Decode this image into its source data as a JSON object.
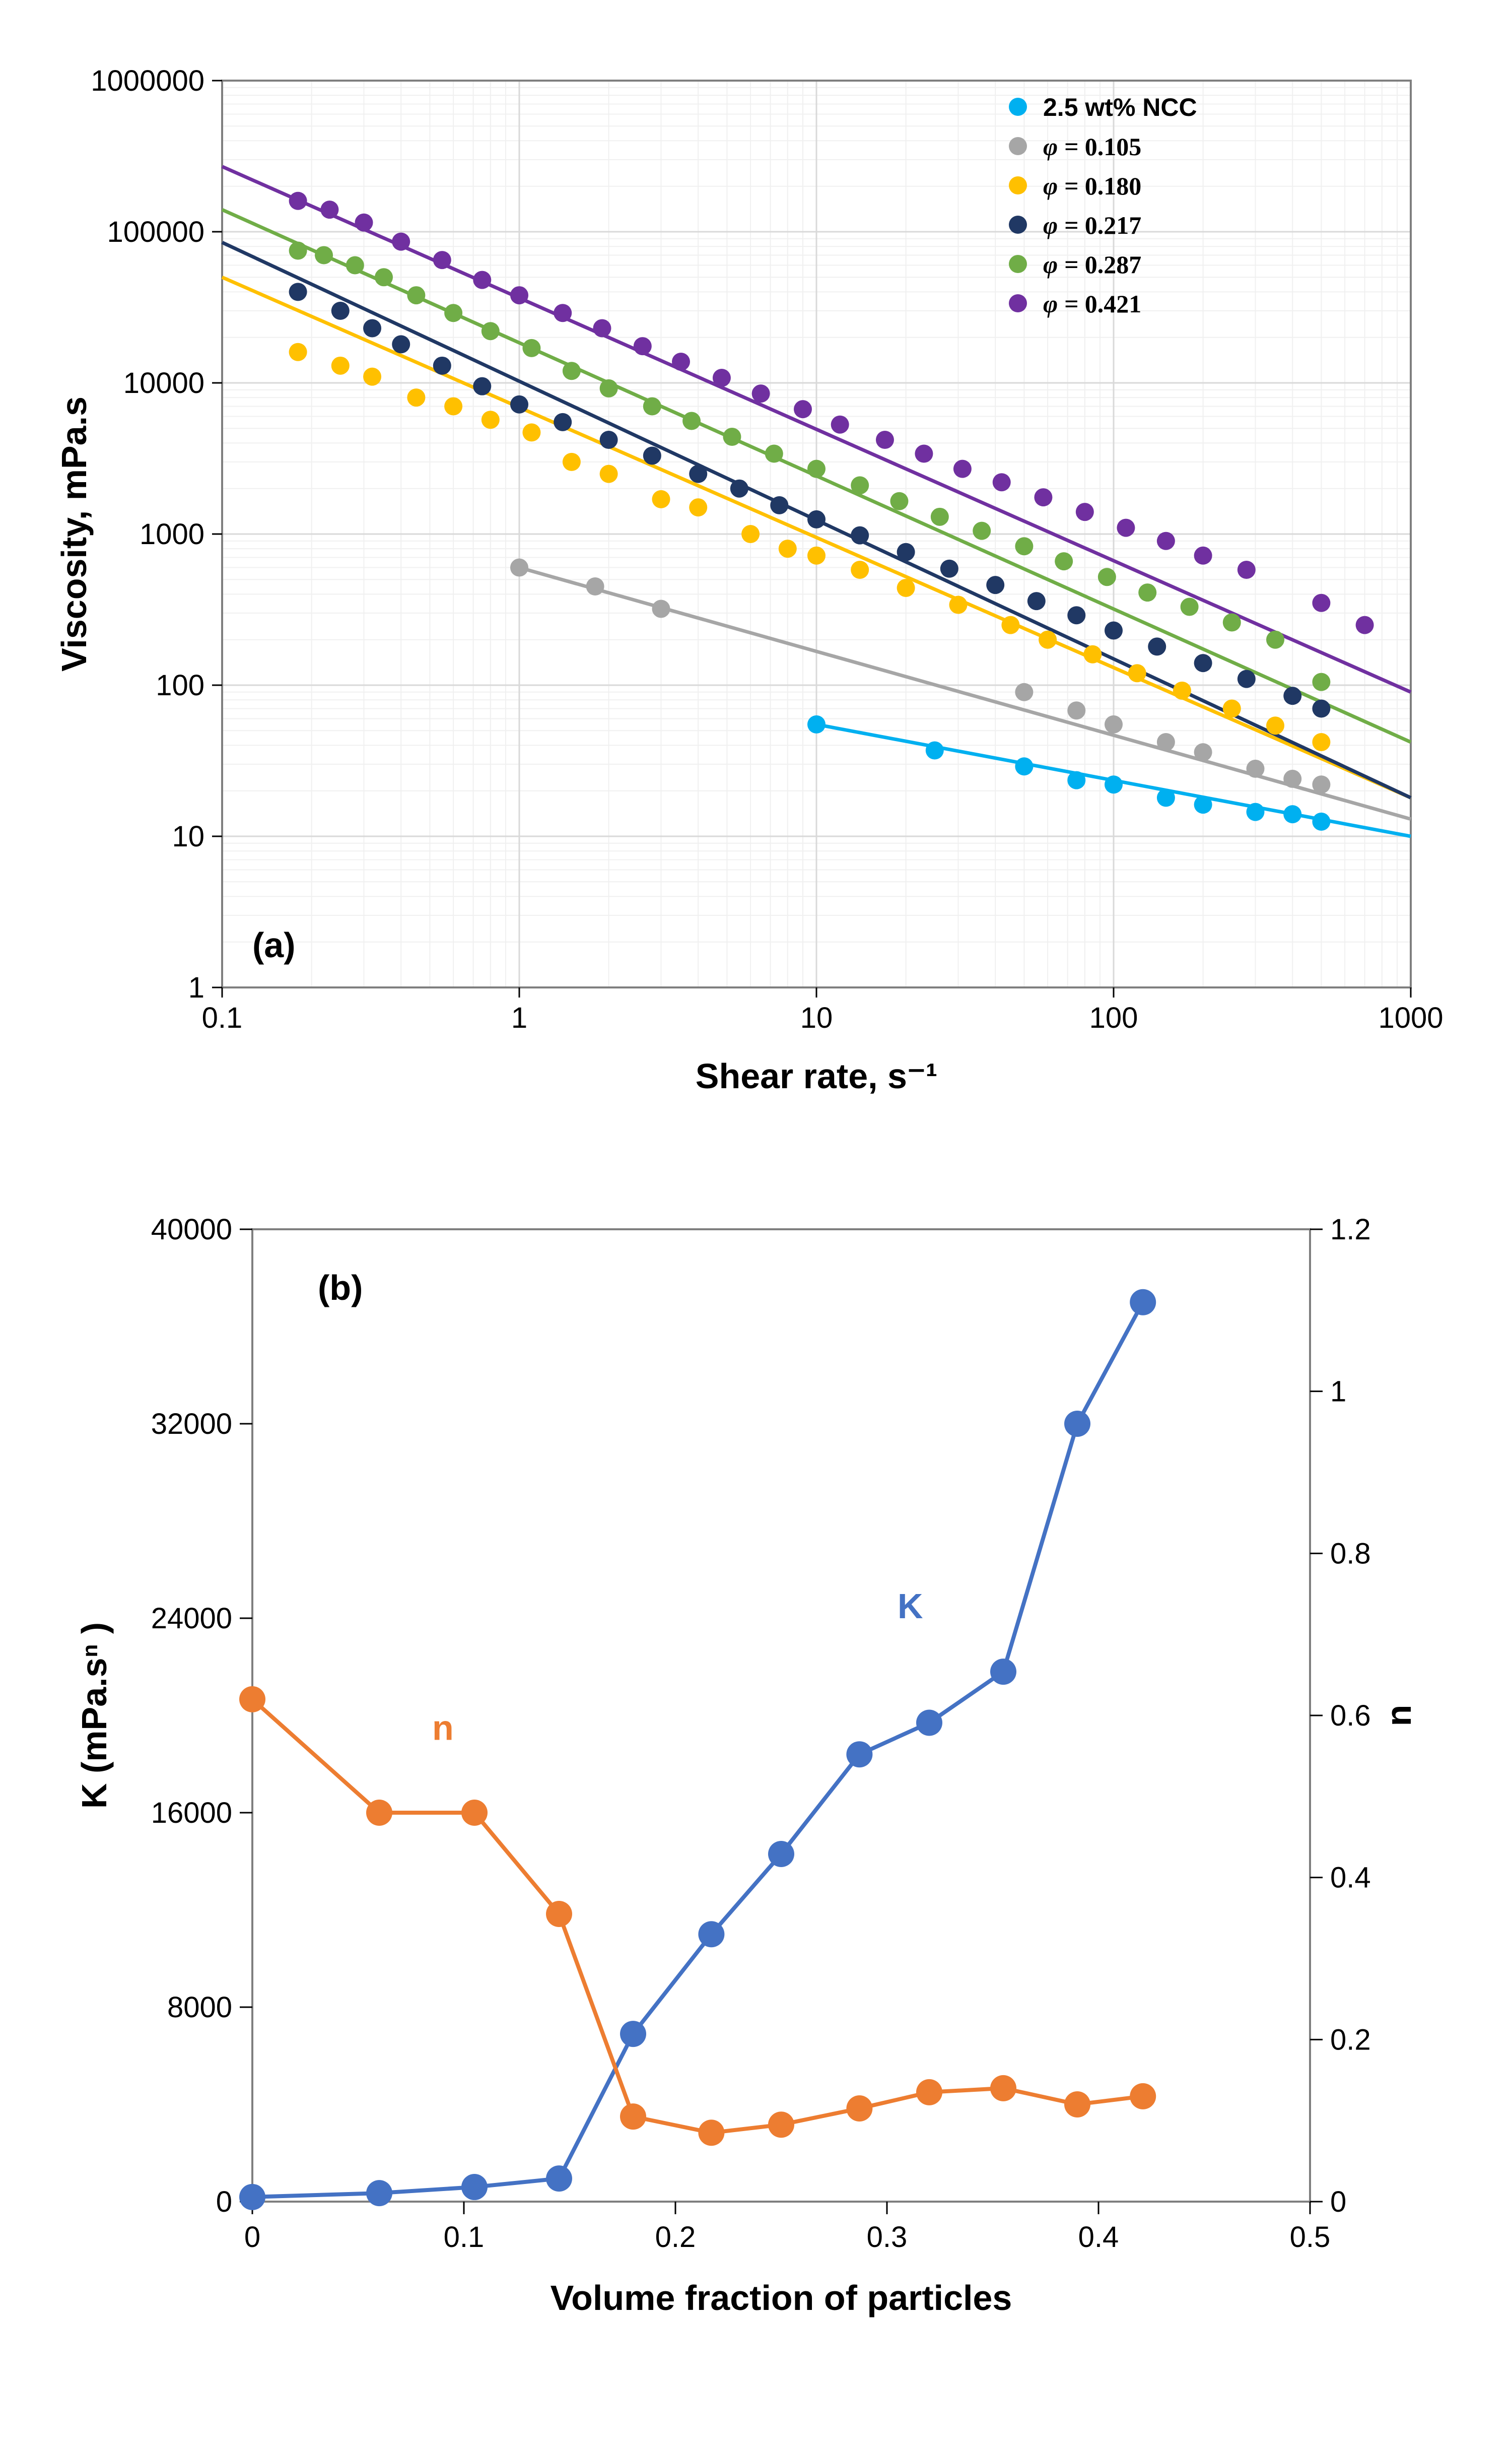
{
  "chart_a": {
    "type": "scatter-loglog",
    "panel_label": "(a)",
    "panel_label_fontsize": 70,
    "panel_label_fontweight": "bold",
    "xlabel": "Shear rate, s⁻¹",
    "ylabel": "Viscosity, mPa.s",
    "axis_label_fontsize": 70,
    "axis_label_fontweight": "bold",
    "tick_fontsize": 58,
    "xlim": [
      0.1,
      1000
    ],
    "ylim": [
      1,
      1000000
    ],
    "xticks": [
      0.1,
      1,
      10,
      100,
      1000
    ],
    "yticks": [
      1,
      10,
      100,
      1000,
      10000,
      100000,
      1000000
    ],
    "background_color": "#ffffff",
    "border_color": "#7f7f7f",
    "major_grid_color": "#d9d9d9",
    "minor_grid_color": "#f0f0f0",
    "marker_radius": 18,
    "line_width": 7,
    "legend_fontsize": 50,
    "legend_font_weight": "bold",
    "series": [
      {
        "label": "2.5 wt% NCC",
        "use_phi": false,
        "color": "#00b0f0",
        "points": [
          [
            10,
            55
          ],
          [
            25,
            37
          ],
          [
            50,
            29
          ],
          [
            75,
            23.5
          ],
          [
            100,
            22
          ],
          [
            150,
            18
          ],
          [
            200,
            16.2
          ],
          [
            300,
            14.5
          ],
          [
            400,
            14
          ],
          [
            500,
            12.5
          ]
        ],
        "trend": {
          "x1": 10,
          "x2": 1000,
          "y1": 55,
          "y2": 10
        }
      },
      {
        "label": "0.105",
        "use_phi": true,
        "color": "#a6a6a6",
        "points": [
          [
            1,
            600
          ],
          [
            1.8,
            450
          ],
          [
            3,
            320
          ],
          [
            50,
            90
          ],
          [
            75,
            68
          ],
          [
            100,
            55
          ],
          [
            150,
            42
          ],
          [
            200,
            36
          ],
          [
            300,
            28
          ],
          [
            400,
            24
          ],
          [
            500,
            22
          ]
        ],
        "trend": {
          "x1": 1,
          "x2": 1000,
          "y1": 600,
          "y2": 13
        }
      },
      {
        "label": "0.180",
        "use_phi": true,
        "color": "#ffc000",
        "points": [
          [
            0.18,
            16000
          ],
          [
            0.25,
            13000
          ],
          [
            0.32,
            11000
          ],
          [
            0.45,
            8000
          ],
          [
            0.6,
            7000
          ],
          [
            0.8,
            5700
          ],
          [
            1.1,
            4700
          ],
          [
            1.5,
            3000
          ],
          [
            2,
            2500
          ],
          [
            3,
            1700
          ],
          [
            4,
            1500
          ],
          [
            6,
            1000
          ],
          [
            8,
            800
          ],
          [
            10,
            720
          ],
          [
            14,
            580
          ],
          [
            20,
            440
          ],
          [
            30,
            340
          ],
          [
            45,
            250
          ],
          [
            60,
            200
          ],
          [
            85,
            160
          ],
          [
            120,
            120
          ],
          [
            170,
            92
          ],
          [
            250,
            70
          ],
          [
            350,
            54
          ],
          [
            500,
            42
          ]
        ],
        "trend": {
          "x1": 0.1,
          "x2": 1000,
          "y1": 50000,
          "y2": 18
        }
      },
      {
        "label": "0.217",
        "use_phi": true,
        "color": "#203864",
        "points": [
          [
            0.18,
            40000
          ],
          [
            0.25,
            30000
          ],
          [
            0.32,
            23000
          ],
          [
            0.4,
            18000
          ],
          [
            0.55,
            13000
          ],
          [
            0.75,
            9500
          ],
          [
            1,
            7200
          ],
          [
            1.4,
            5500
          ],
          [
            2,
            4200
          ],
          [
            2.8,
            3300
          ],
          [
            4,
            2500
          ],
          [
            5.5,
            2000
          ],
          [
            7.5,
            1550
          ],
          [
            10,
            1250
          ],
          [
            14,
            980
          ],
          [
            20,
            760
          ],
          [
            28,
            590
          ],
          [
            40,
            460
          ],
          [
            55,
            360
          ],
          [
            75,
            290
          ],
          [
            100,
            230
          ],
          [
            140,
            180
          ],
          [
            200,
            140
          ],
          [
            280,
            110
          ],
          [
            400,
            85
          ],
          [
            500,
            70
          ]
        ],
        "trend": {
          "x1": 0.1,
          "x2": 1000,
          "y1": 85000,
          "y2": 18
        }
      },
      {
        "label": "0.287",
        "use_phi": true,
        "color": "#70ad47",
        "points": [
          [
            0.18,
            75000
          ],
          [
            0.22,
            70000
          ],
          [
            0.28,
            60000
          ],
          [
            0.35,
            50000
          ],
          [
            0.45,
            38000
          ],
          [
            0.6,
            29000
          ],
          [
            0.8,
            22000
          ],
          [
            1.1,
            17000
          ],
          [
            1.5,
            12000
          ],
          [
            2,
            9200
          ],
          [
            2.8,
            7000
          ],
          [
            3.8,
            5600
          ],
          [
            5.2,
            4400
          ],
          [
            7.2,
            3400
          ],
          [
            10,
            2700
          ],
          [
            14,
            2100
          ],
          [
            19,
            1650
          ],
          [
            26,
            1300
          ],
          [
            36,
            1050
          ],
          [
            50,
            830
          ],
          [
            68,
            660
          ],
          [
            95,
            520
          ],
          [
            130,
            410
          ],
          [
            180,
            330
          ],
          [
            250,
            260
          ],
          [
            350,
            200
          ],
          [
            500,
            105
          ]
        ],
        "trend": {
          "x1": 0.1,
          "x2": 1000,
          "y1": 140000,
          "y2": 42
        }
      },
      {
        "label": "0.421",
        "use_phi": true,
        "color": "#7030a0",
        "points": [
          [
            0.18,
            160000
          ],
          [
            0.23,
            140000
          ],
          [
            0.3,
            115000
          ],
          [
            0.4,
            86000
          ],
          [
            0.55,
            65000
          ],
          [
            0.75,
            48000
          ],
          [
            1,
            38000
          ],
          [
            1.4,
            29000
          ],
          [
            1.9,
            23000
          ],
          [
            2.6,
            17500
          ],
          [
            3.5,
            13800
          ],
          [
            4.8,
            10800
          ],
          [
            6.5,
            8500
          ],
          [
            9,
            6700
          ],
          [
            12,
            5300
          ],
          [
            17,
            4200
          ],
          [
            23,
            3400
          ],
          [
            31,
            2700
          ],
          [
            42,
            2200
          ],
          [
            58,
            1750
          ],
          [
            80,
            1400
          ],
          [
            110,
            1100
          ],
          [
            150,
            900
          ],
          [
            200,
            720
          ],
          [
            280,
            580
          ],
          [
            500,
            350
          ],
          [
            700,
            250
          ]
        ],
        "trend": {
          "x1": 0.1,
          "x2": 1000,
          "y1": 270000,
          "y2": 90
        }
      }
    ]
  },
  "chart_b": {
    "type": "line-dual-axis",
    "panel_label": "(b)",
    "panel_label_fontsize": 70,
    "panel_label_fontweight": "bold",
    "xlabel": "Volume fraction of particles",
    "y1label": "K (mPa.sⁿ )",
    "y2label": "n",
    "axis_label_fontsize": 70,
    "axis_label_fontweight": "bold",
    "tick_fontsize": 58,
    "xlim": [
      0,
      0.5
    ],
    "y1lim": [
      0,
      40000
    ],
    "y2lim": [
      0,
      1.2
    ],
    "xticks": [
      0,
      0.1,
      0.2,
      0.3,
      0.4,
      0.5
    ],
    "y1ticks": [
      0,
      8000,
      16000,
      24000,
      32000,
      40000
    ],
    "y2ticks": [
      0,
      0.2,
      0.4,
      0.6,
      0.8,
      1,
      1.2
    ],
    "background_color": "#ffffff",
    "border_color": "#7f7f7f",
    "marker_radius": 26,
    "line_width": 8,
    "series_K": {
      "label": "K",
      "color": "#4472c4",
      "label_fontsize": 70,
      "label_fontweight": "bold",
      "points": [
        [
          0,
          190
        ],
        [
          0.06,
          350
        ],
        [
          0.105,
          600
        ],
        [
          0.145,
          950
        ],
        [
          0.18,
          6900
        ],
        [
          0.217,
          11000
        ],
        [
          0.25,
          14300
        ],
        [
          0.287,
          18400
        ],
        [
          0.32,
          19700
        ],
        [
          0.355,
          21800
        ],
        [
          0.39,
          32000
        ],
        [
          0.421,
          37000
        ]
      ]
    },
    "series_n": {
      "label": "n",
      "color": "#ed7d31",
      "label_fontsize": 70,
      "label_fontweight": "bold",
      "points": [
        [
          0,
          0.62
        ],
        [
          0.06,
          0.48
        ],
        [
          0.105,
          0.48
        ],
        [
          0.145,
          0.355
        ],
        [
          0.18,
          0.105
        ],
        [
          0.217,
          0.085
        ],
        [
          0.25,
          0.095
        ],
        [
          0.287,
          0.115
        ],
        [
          0.32,
          0.135
        ],
        [
          0.355,
          0.14
        ],
        [
          0.39,
          0.12
        ],
        [
          0.421,
          0.13
        ]
      ]
    }
  }
}
